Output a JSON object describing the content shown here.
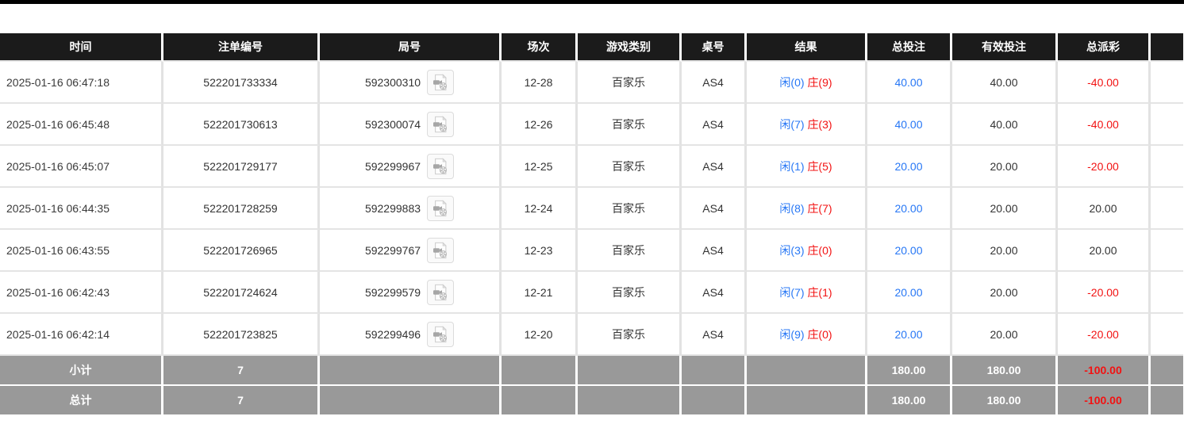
{
  "colors": {
    "top_bar": "#000000",
    "header_bg": "#1b1b1b",
    "header_text": "#ffffff",
    "body_text": "#333333",
    "accent_blue": "#2777f5",
    "accent_red": "#f21212",
    "summary_bg": "#999999",
    "grid_border": "#e2e2e2"
  },
  "table": {
    "header": {
      "columns": [
        {
          "key": "time",
          "label": "时间"
        },
        {
          "key": "bet_no",
          "label": "注单编号"
        },
        {
          "key": "round_no",
          "label": "局号"
        },
        {
          "key": "session",
          "label": "场次"
        },
        {
          "key": "game_type",
          "label": "游戏类别"
        },
        {
          "key": "table_no",
          "label": "桌号"
        },
        {
          "key": "result",
          "label": "结果"
        },
        {
          "key": "total_bet",
          "label": "总投注"
        },
        {
          "key": "valid_bet",
          "label": "有效投注"
        },
        {
          "key": "total_payout",
          "label": "总派彩"
        },
        {
          "key": "extra",
          "label": ""
        }
      ]
    },
    "rows": [
      {
        "time": "2025-01-16 06:47:18",
        "bet_no": "522201733334",
        "round_no": "592300310",
        "session": "12-28",
        "game_type": "百家乐",
        "table_no": "AS4",
        "result_player": "闲(0)",
        "result_banker": "庄(9)",
        "total_bet": "40.00",
        "valid_bet": "40.00",
        "total_payout": "-40.00"
      },
      {
        "time": "2025-01-16 06:45:48",
        "bet_no": "522201730613",
        "round_no": "592300074",
        "session": "12-26",
        "game_type": "百家乐",
        "table_no": "AS4",
        "result_player": "闲(7)",
        "result_banker": "庄(3)",
        "total_bet": "40.00",
        "valid_bet": "40.00",
        "total_payout": "-40.00"
      },
      {
        "time": "2025-01-16 06:45:07",
        "bet_no": "522201729177",
        "round_no": "592299967",
        "session": "12-25",
        "game_type": "百家乐",
        "table_no": "AS4",
        "result_player": "闲(1)",
        "result_banker": "庄(5)",
        "total_bet": "20.00",
        "valid_bet": "20.00",
        "total_payout": "-20.00"
      },
      {
        "time": "2025-01-16 06:44:35",
        "bet_no": "522201728259",
        "round_no": "592299883",
        "session": "12-24",
        "game_type": "百家乐",
        "table_no": "AS4",
        "result_player": "闲(8)",
        "result_banker": "庄(7)",
        "total_bet": "20.00",
        "valid_bet": "20.00",
        "total_payout": "20.00"
      },
      {
        "time": "2025-01-16 06:43:55",
        "bet_no": "522201726965",
        "round_no": "592299767",
        "session": "12-23",
        "game_type": "百家乐",
        "table_no": "AS4",
        "result_player": "闲(3)",
        "result_banker": "庄(0)",
        "total_bet": "20.00",
        "valid_bet": "20.00",
        "total_payout": "20.00"
      },
      {
        "time": "2025-01-16 06:42:43",
        "bet_no": "522201724624",
        "round_no": "592299579",
        "session": "12-21",
        "game_type": "百家乐",
        "table_no": "AS4",
        "result_player": "闲(7)",
        "result_banker": "庄(1)",
        "total_bet": "20.00",
        "valid_bet": "20.00",
        "total_payout": "-20.00"
      },
      {
        "time": "2025-01-16 06:42:14",
        "bet_no": "522201723825",
        "round_no": "592299496",
        "session": "12-20",
        "game_type": "百家乐",
        "table_no": "AS4",
        "result_player": "闲(9)",
        "result_banker": "庄(0)",
        "total_bet": "20.00",
        "valid_bet": "20.00",
        "total_payout": "-20.00"
      }
    ],
    "summary_rows": [
      {
        "label": "小计",
        "count": "7",
        "total_bet": "180.00",
        "valid_bet": "180.00",
        "total_payout": "-100.00"
      },
      {
        "label": "总计",
        "count": "7",
        "total_bet": "180.00",
        "valid_bet": "180.00",
        "total_payout": "-100.00"
      }
    ]
  }
}
